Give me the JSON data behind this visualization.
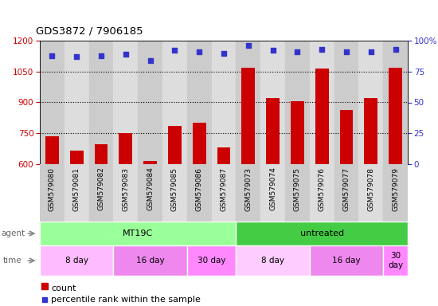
{
  "title": "GDS3872 / 7906185",
  "samples": [
    "GSM579080",
    "GSM579081",
    "GSM579082",
    "GSM579083",
    "GSM579084",
    "GSM579085",
    "GSM579086",
    "GSM579087",
    "GSM579073",
    "GSM579074",
    "GSM579075",
    "GSM579076",
    "GSM579077",
    "GSM579078",
    "GSM579079"
  ],
  "counts": [
    735,
    665,
    695,
    750,
    615,
    785,
    800,
    680,
    1070,
    920,
    905,
    1065,
    865,
    920,
    1070
  ],
  "percentiles": [
    88,
    87,
    88,
    89,
    84,
    92,
    91,
    90,
    96,
    92,
    91,
    93,
    91,
    91,
    93
  ],
  "ylim_left": [
    600,
    1200
  ],
  "ylim_right": [
    0,
    100
  ],
  "yticks_left": [
    600,
    750,
    900,
    1050,
    1200
  ],
  "yticks_right": [
    0,
    25,
    50,
    75,
    100
  ],
  "bar_color": "#cc0000",
  "dot_color": "#3333cc",
  "agent_groups": [
    {
      "label": "MT19C",
      "start": 0,
      "end": 8,
      "color": "#99ff99"
    },
    {
      "label": "untreated",
      "start": 8,
      "end": 15,
      "color": "#44cc44"
    }
  ],
  "time_groups": [
    {
      "label": "8 day",
      "start": 0,
      "end": 3,
      "color": "#ffbbff"
    },
    {
      "label": "16 day",
      "start": 3,
      "end": 6,
      "color": "#ee88ee"
    },
    {
      "label": "30 day",
      "start": 6,
      "end": 8,
      "color": "#ff88ff"
    },
    {
      "label": "8 day",
      "start": 8,
      "end": 11,
      "color": "#ffccff"
    },
    {
      "label": "16 day",
      "start": 11,
      "end": 14,
      "color": "#ee88ee"
    },
    {
      "label": "30\nday",
      "start": 14,
      "end": 15,
      "color": "#ff88ff"
    }
  ],
  "col_bg_even": "#cccccc",
  "col_bg_odd": "#dddddd",
  "legend_count_label": "count",
  "legend_pct_label": "percentile rank within the sample",
  "agent_label": "agent",
  "time_label": "time",
  "grid_ticks": [
    750,
    900,
    1050
  ]
}
